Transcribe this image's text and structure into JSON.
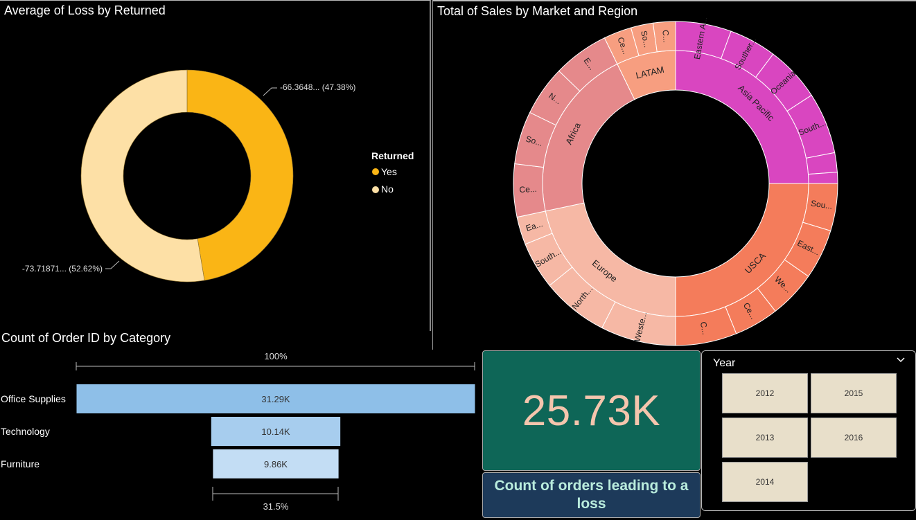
{
  "donut": {
    "title": "Average of Loss by Returned",
    "legend_title": "Returned",
    "slices": [
      {
        "label": "Yes",
        "value": -66.3648,
        "percent": 47.38,
        "color": "#fab515",
        "data_label": "-66.3648... (47.38%)"
      },
      {
        "label": "No",
        "value": -73.71871,
        "percent": 52.62,
        "color": "#fde0a6",
        "data_label": "-73.71871... (52.62%)"
      }
    ]
  },
  "sunburst": {
    "title": "Total of Sales by Market and Region",
    "markets": [
      {
        "label": "Asia Pacific",
        "color": "#d946c0",
        "regions": [
          "Eastern A...",
          "Souther...",
          "Oceania",
          "South...",
          "",
          ""
        ]
      },
      {
        "label": "USCA",
        "color": "#f47c5b",
        "regions": [
          "Sou...",
          "East...",
          "We...",
          "Ce...",
          "C..."
        ]
      },
      {
        "label": "Europe",
        "color": "#f6b8a5",
        "regions": [
          "Weste...",
          "North...",
          "South...",
          "Ea..."
        ]
      },
      {
        "label": "Africa",
        "color": "#e5898b",
        "regions": [
          "Ce...",
          "So...",
          "N...",
          "E..."
        ]
      },
      {
        "label": "LATAM",
        "color": "#f79e80",
        "regions": [
          "Ce...",
          "So...",
          "C..."
        ]
      }
    ]
  },
  "funnel": {
    "title": "Count of Order ID by Category",
    "top_percent": "100%",
    "bottom_percent": "31.5%",
    "categories": [
      {
        "label": "Office Supplies",
        "value": 31.29,
        "display": "31.29K",
        "color": "#8ebfe8"
      },
      {
        "label": "Technology",
        "value": 10.14,
        "display": "10.14K",
        "color": "#a7cdee"
      },
      {
        "label": "Furniture",
        "value": 9.86,
        "display": "9.86K",
        "color": "#c3ddf4"
      }
    ]
  },
  "kpi": {
    "value": "25.73K",
    "caption": "Count of orders leading to a loss"
  },
  "slicer": {
    "title": "Year",
    "chevron_icon": "chevron-down-icon",
    "options": [
      "2012",
      "2015",
      "2013",
      "2016",
      "2014"
    ]
  },
  "chart_data": [
    {
      "type": "pie",
      "title": "Average of Loss by Returned",
      "categories": [
        "Yes",
        "No"
      ],
      "values": [
        -66.3648,
        -73.71871
      ],
      "percentages": [
        47.38,
        52.62
      ],
      "legend": "right"
    },
    {
      "type": "pie",
      "title": "Total of Sales by Market and Region",
      "categories": [
        "Asia Pacific",
        "USCA",
        "Europe",
        "Africa",
        "LATAM"
      ]
    },
    {
      "type": "bar",
      "title": "Count of Order ID by Category",
      "categories": [
        "Office Supplies",
        "Technology",
        "Furniture"
      ],
      "values": [
        31.29,
        10.14,
        9.86
      ]
    }
  ]
}
